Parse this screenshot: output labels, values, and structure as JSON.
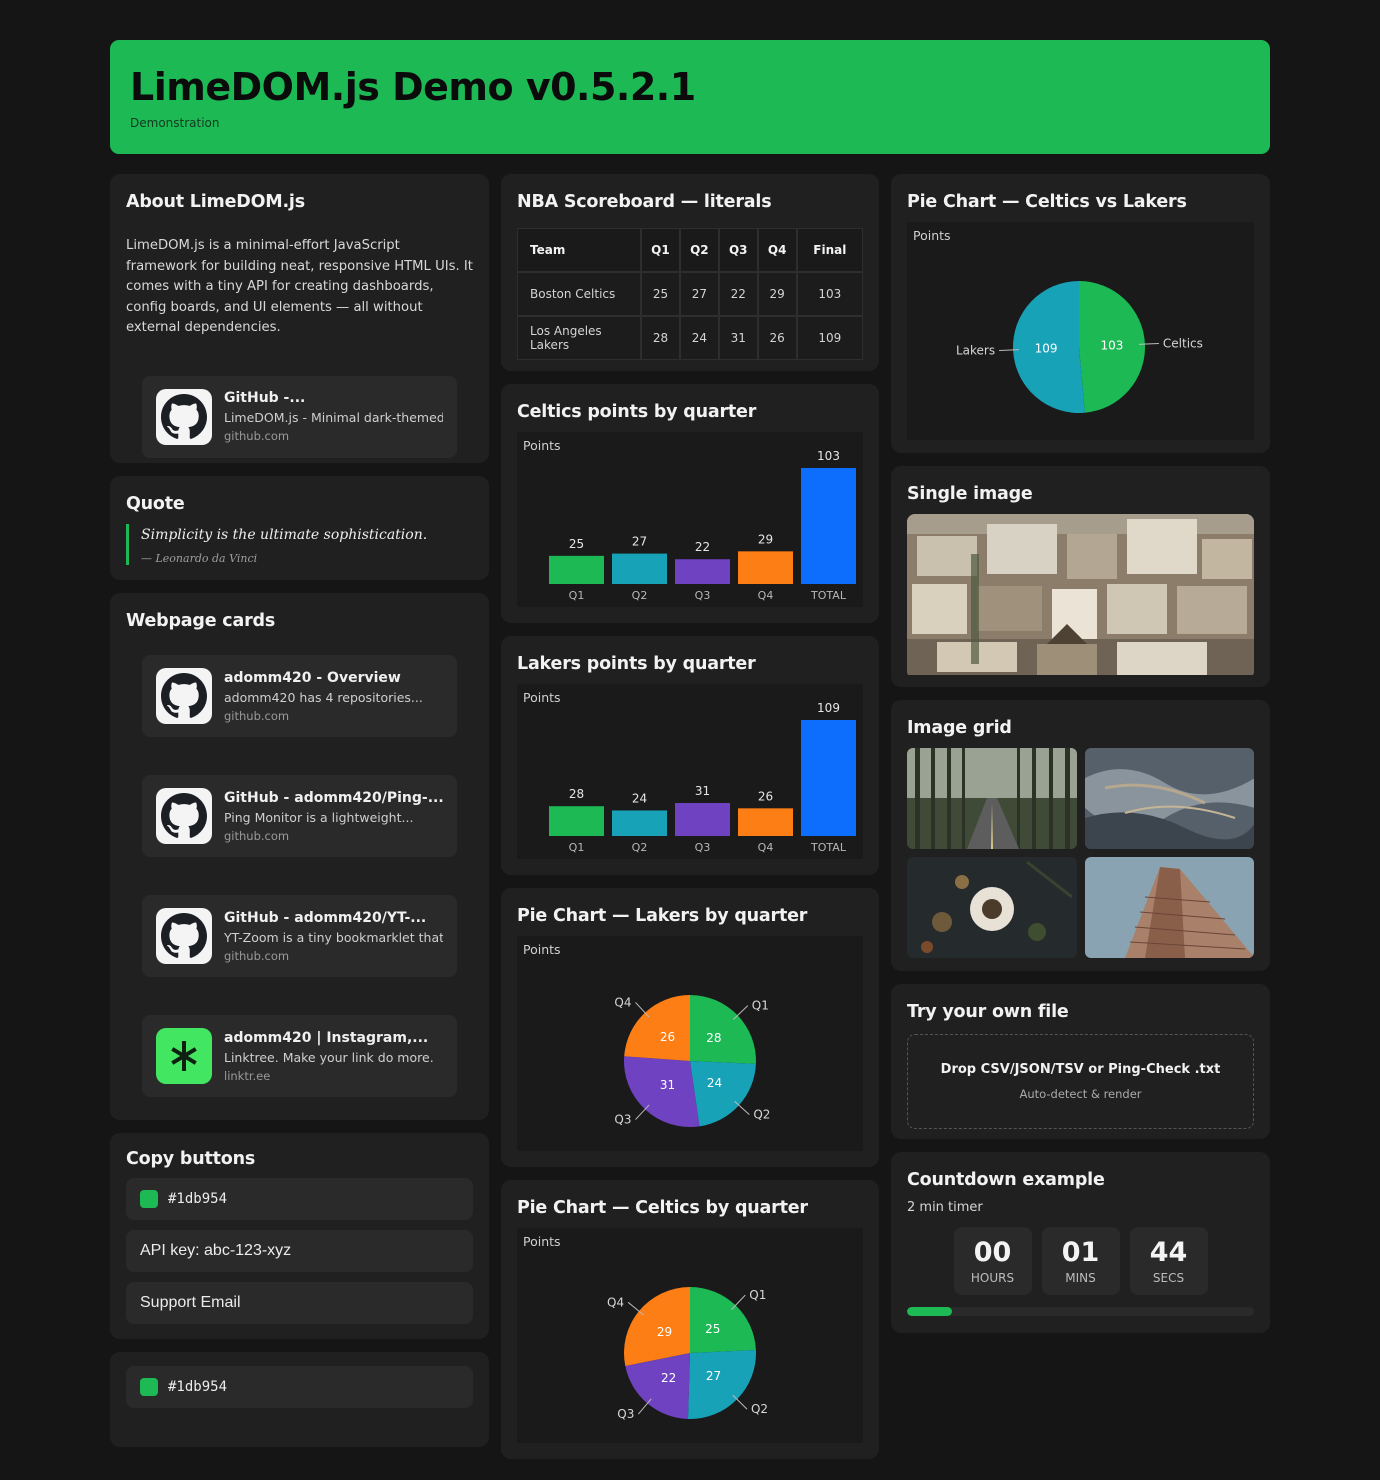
{
  "header": {
    "title": "LimeDOM.js Demo v0.5.2.1",
    "subtitle": "Demonstration"
  },
  "about": {
    "title": "About LimeDOM.js",
    "text": "LimeDOM.js is a minimal-effort JavaScript framework for building neat, responsive HTML UIs. It comes with a tiny API for creating dashboards, config boards, and UI elements — all without external dependencies.",
    "link": {
      "title": "GitHub -...",
      "desc": "LimeDOM.js - Minimal dark-themed...",
      "host": "github.com",
      "icon": "github-icon"
    }
  },
  "quote": {
    "title": "Quote",
    "text": "Simplicity is the ultimate sophistication.",
    "author": "— Leonardo da Vinci"
  },
  "webcards": {
    "title": "Webpage cards",
    "items": [
      {
        "title": "adomm420 - Overview",
        "desc": "adomm420 has 4 repositories...",
        "host": "github.com",
        "icon": "github-icon"
      },
      {
        "title": "GitHub - adomm420/Ping-...",
        "desc": "Ping Monitor is a lightweight...",
        "host": "github.com",
        "icon": "github-icon"
      },
      {
        "title": "GitHub - adomm420/YT-...",
        "desc": "YT-Zoom is a tiny bookmarklet that...",
        "host": "github.com",
        "icon": "github-icon"
      },
      {
        "title": "adomm420 | Instagram,...",
        "desc": "Linktree. Make your link do more.",
        "host": "linktr.ee",
        "icon": "linktree-icon"
      }
    ]
  },
  "copy": {
    "title": "Copy buttons",
    "color_label": "#1db954",
    "api_label": "API key: abc-123-xyz",
    "email_label": "Support Email",
    "extra_color_label": "#1db954"
  },
  "scoreboard": {
    "title": "NBA Scoreboard — literals",
    "headers": [
      "Team",
      "Q1",
      "Q2",
      "Q3",
      "Q4",
      "Final"
    ],
    "rows": [
      [
        "Boston Celtics",
        "25",
        "27",
        "22",
        "29",
        "103"
      ],
      [
        "Los Angeles Lakers",
        "28",
        "24",
        "31",
        "26",
        "109"
      ]
    ]
  },
  "colors": {
    "q1": "#1db954",
    "q2": "#17a2b8",
    "q3": "#6f42c1",
    "q4": "#fd7e14",
    "total": "#0d6efd",
    "accent": "#1db954"
  },
  "celtics_chart": {
    "title": "Celtics points by quarter"
  },
  "lakers_chart": {
    "title": "Lakers points by quarter"
  },
  "lakers_pie": {
    "title": "Pie Chart — Lakers by quarter"
  },
  "celtics_pie": {
    "title": "Pie Chart — Celtics by quarter"
  },
  "vs_pie": {
    "title": "Pie Chart — Celtics vs Lakers"
  },
  "chart_data": [
    {
      "type": "bar",
      "title": "Points",
      "categories": [
        "Q1",
        "Q2",
        "Q3",
        "Q4",
        "TOTAL"
      ],
      "values": [
        25,
        27,
        22,
        29,
        103
      ]
    },
    {
      "type": "bar",
      "title": "Points",
      "categories": [
        "Q1",
        "Q2",
        "Q3",
        "Q4",
        "TOTAL"
      ],
      "values": [
        28,
        24,
        31,
        26,
        109
      ]
    },
    {
      "type": "pie",
      "title": "Points",
      "categories": [
        "Q1",
        "Q2",
        "Q3",
        "Q4"
      ],
      "values": [
        28,
        24,
        31,
        26
      ]
    },
    {
      "type": "pie",
      "title": "Points",
      "categories": [
        "Q1",
        "Q2",
        "Q3",
        "Q4"
      ],
      "values": [
        25,
        27,
        22,
        29
      ]
    },
    {
      "type": "pie",
      "title": "Points",
      "categories": [
        "Celtics",
        "Lakers"
      ],
      "values": [
        103,
        109
      ]
    }
  ],
  "single_image": {
    "title": "Single image"
  },
  "image_grid": {
    "title": "Image grid"
  },
  "file": {
    "title": "Try your own file",
    "drop_text": "Drop CSV/JSON/TSV or Ping-Check .txt",
    "drop_sub": "Auto-detect & render"
  },
  "countdown": {
    "title": "Countdown example",
    "label": "2 min timer",
    "hours": "00",
    "hours_label": "HOURS",
    "mins": "01",
    "mins_label": "MINS",
    "secs": "44",
    "secs_label": "SECS",
    "progress": 0.13
  }
}
